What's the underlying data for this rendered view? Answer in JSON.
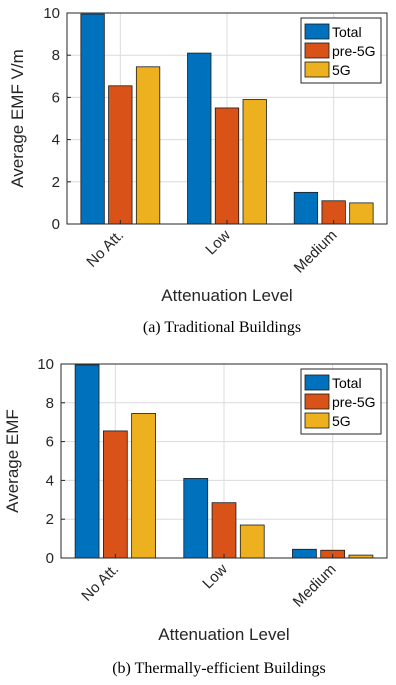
{
  "colors": {
    "Total": "#0072BD",
    "pre-5G": "#D95319",
    "5G": "#EDB120"
  },
  "chart_data": [
    {
      "type": "bar",
      "caption": "(a) Traditional Buildings",
      "xlabel": "Attenuation Level",
      "ylabel": "Average EMF V/m",
      "categories": [
        "No Att.",
        "Low",
        "Medium"
      ],
      "ylim": [
        0,
        10
      ],
      "yticks": [
        0,
        2,
        4,
        6,
        8,
        10
      ],
      "grid": true,
      "legend_position": "top-right",
      "series": [
        {
          "name": "Total",
          "values": [
            9.95,
            8.1,
            1.5
          ]
        },
        {
          "name": "pre-5G",
          "values": [
            6.55,
            5.5,
            1.1
          ]
        },
        {
          "name": "5G",
          "values": [
            7.45,
            5.9,
            1.0
          ]
        }
      ]
    },
    {
      "type": "bar",
      "caption": "(b) Thermally-efficient Buildings",
      "xlabel": "Attenuation Level",
      "ylabel": "Average EMF",
      "categories": [
        "No Att.",
        "Low",
        "Medium"
      ],
      "ylim": [
        0,
        10
      ],
      "yticks": [
        0,
        2,
        4,
        6,
        8,
        10
      ],
      "grid": true,
      "legend_position": "top-right",
      "series": [
        {
          "name": "Total",
          "values": [
            9.95,
            4.1,
            0.45
          ]
        },
        {
          "name": "pre-5G",
          "values": [
            6.55,
            2.85,
            0.4
          ]
        },
        {
          "name": "5G",
          "values": [
            7.45,
            1.7,
            0.15
          ]
        }
      ]
    }
  ]
}
